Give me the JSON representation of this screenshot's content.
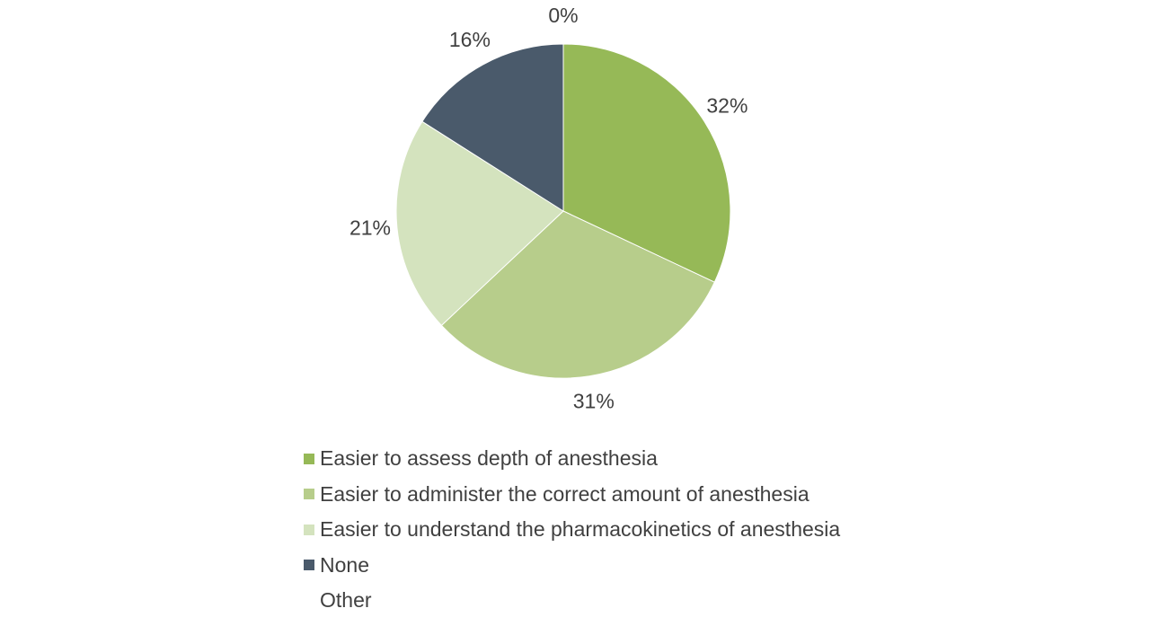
{
  "chart_data": {
    "type": "pie",
    "title": "",
    "start_angle_deg": 0,
    "direction": "clockwise",
    "legend_position": "bottom",
    "slices": [
      {
        "name": "Easier to assess depth of anesthesia",
        "value": 32,
        "label": "32%",
        "color": "#96b957"
      },
      {
        "name": "Easier to administer the correct amount of anesthesia",
        "value": 31,
        "label": "31%",
        "color": "#b7cd8b"
      },
      {
        "name": "Easier to understand the pharmacokinetics of anesthesia",
        "value": 21,
        "label": "21%",
        "color": "#d4e3be"
      },
      {
        "name": "None",
        "value": 16,
        "label": "16%",
        "color": "#4a5a6b"
      },
      {
        "name": "Other",
        "value": 0,
        "label": "0%",
        "color": "#ffffff"
      }
    ]
  }
}
